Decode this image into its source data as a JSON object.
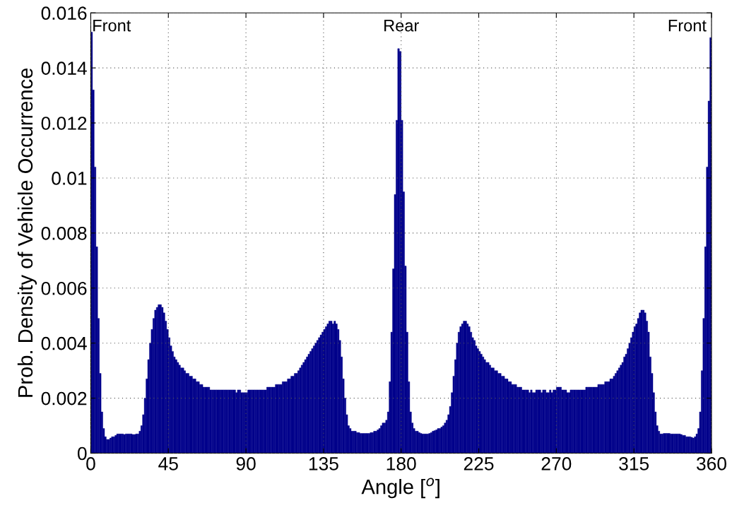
{
  "chart_data": {
    "type": "histogram",
    "xlabel": "Angle [$^{o}$]",
    "ylabel": "Prob. Density of Vehicle Occurrence",
    "bins": [
      0,
      1,
      2,
      3,
      4,
      5,
      6,
      7,
      8,
      9,
      10,
      11,
      12,
      13,
      14,
      15,
      16,
      17,
      18,
      19,
      20,
      21,
      22,
      23,
      24,
      25,
      26,
      27,
      28,
      29,
      30,
      31,
      32,
      33,
      34,
      35,
      36,
      37,
      38,
      39,
      40,
      41,
      42,
      43,
      44,
      45,
      46,
      47,
      48,
      49,
      50,
      51,
      52,
      53,
      54,
      55,
      56,
      57,
      58,
      59,
      60,
      61,
      62,
      63,
      64,
      65,
      66,
      67,
      68,
      69,
      70,
      71,
      72,
      73,
      74,
      75,
      76,
      77,
      78,
      79,
      80,
      81,
      82,
      83,
      84,
      85,
      86,
      87,
      88,
      89,
      90,
      91,
      92,
      93,
      94,
      95,
      96,
      97,
      98,
      99,
      100,
      101,
      102,
      103,
      104,
      105,
      106,
      107,
      108,
      109,
      110,
      111,
      112,
      113,
      114,
      115,
      116,
      117,
      118,
      119,
      120,
      121,
      122,
      123,
      124,
      125,
      126,
      127,
      128,
      129,
      130,
      131,
      132,
      133,
      134,
      135,
      136,
      137,
      138,
      139,
      140,
      141,
      142,
      143,
      144,
      145,
      146,
      147,
      148,
      149,
      150,
      151,
      152,
      153,
      154,
      155,
      156,
      157,
      158,
      159,
      160,
      161,
      162,
      163,
      164,
      165,
      166,
      167,
      168,
      169,
      170,
      171,
      172,
      173,
      174,
      175,
      176,
      177,
      178,
      179,
      180,
      181,
      182,
      183,
      184,
      185,
      186,
      187,
      188,
      189,
      190,
      191,
      192,
      193,
      194,
      195,
      196,
      197,
      198,
      199,
      200,
      201,
      202,
      203,
      204,
      205,
      206,
      207,
      208,
      209,
      210,
      211,
      212,
      213,
      214,
      215,
      216,
      217,
      218,
      219,
      220,
      221,
      222,
      223,
      224,
      225,
      226,
      227,
      228,
      229,
      230,
      231,
      232,
      233,
      234,
      235,
      236,
      237,
      238,
      239,
      240,
      241,
      242,
      243,
      244,
      245,
      246,
      247,
      248,
      249,
      250,
      251,
      252,
      253,
      254,
      255,
      256,
      257,
      258,
      259,
      260,
      261,
      262,
      263,
      264,
      265,
      266,
      267,
      268,
      269,
      270,
      271,
      272,
      273,
      274,
      275,
      276,
      277,
      278,
      279,
      280,
      281,
      282,
      283,
      284,
      285,
      286,
      287,
      288,
      289,
      290,
      291,
      292,
      293,
      294,
      295,
      296,
      297,
      298,
      299,
      300,
      301,
      302,
      303,
      304,
      305,
      306,
      307,
      308,
      309,
      310,
      311,
      312,
      313,
      314,
      315,
      316,
      317,
      318,
      319,
      320,
      321,
      322,
      323,
      324,
      325,
      326,
      327,
      328,
      329,
      330,
      331,
      332,
      333,
      334,
      335,
      336,
      337,
      338,
      339,
      340,
      341,
      342,
      343,
      344,
      345,
      346,
      347,
      348,
      349,
      350,
      351,
      352,
      353,
      354,
      355,
      356,
      357,
      358,
      359,
      360
    ],
    "values": [
      0.0153,
      0.0132,
      0.0104,
      0.0075,
      0.0049,
      0.0029,
      0.0015,
      0.0009,
      0.0006,
      0.0005,
      0.0005,
      0.00055,
      0.0006,
      0.0006,
      0.00065,
      0.0007,
      0.0007,
      0.0007,
      0.0007,
      0.00068,
      0.0007,
      0.0007,
      0.0007,
      0.0007,
      0.00068,
      0.00068,
      0.0007,
      0.0007,
      0.0008,
      0.001,
      0.0014,
      0.002,
      0.0027,
      0.0034,
      0.004,
      0.0045,
      0.0049,
      0.0052,
      0.0053,
      0.0054,
      0.0054,
      0.0053,
      0.0051,
      0.0048,
      0.0045,
      0.0042,
      0.0039,
      0.0037,
      0.0035,
      0.0034,
      0.0033,
      0.0032,
      0.0031,
      0.0031,
      0.003,
      0.0029,
      0.0029,
      0.0028,
      0.0028,
      0.0027,
      0.0027,
      0.0026,
      0.0026,
      0.0025,
      0.0025,
      0.0024,
      0.0024,
      0.0024,
      0.0024,
      0.0023,
      0.0023,
      0.0023,
      0.0023,
      0.0023,
      0.0023,
      0.0023,
      0.0023,
      0.0023,
      0.0023,
      0.0023,
      0.0023,
      0.0023,
      0.0023,
      0.0023,
      0.0022,
      0.0023,
      0.0023,
      0.0022,
      0.0022,
      0.0022,
      0.0022,
      0.0023,
      0.0023,
      0.0023,
      0.0023,
      0.0023,
      0.0023,
      0.0023,
      0.0023,
      0.0023,
      0.0023,
      0.0023,
      0.0024,
      0.0024,
      0.0024,
      0.0024,
      0.0024,
      0.0025,
      0.0025,
      0.0025,
      0.0025,
      0.0026,
      0.0026,
      0.0026,
      0.0027,
      0.0027,
      0.0028,
      0.0028,
      0.0029,
      0.0029,
      0.003,
      0.0031,
      0.0032,
      0.0033,
      0.0034,
      0.0035,
      0.0036,
      0.0037,
      0.0038,
      0.0039,
      0.004,
      0.0041,
      0.0042,
      0.0043,
      0.0044,
      0.0045,
      0.0046,
      0.0047,
      0.0048,
      0.0048,
      0.0047,
      0.0048,
      0.0047,
      0.0045,
      0.0041,
      0.0035,
      0.0027,
      0.002,
      0.0014,
      0.001,
      0.0009,
      0.0008,
      0.0008,
      0.0008,
      0.00075,
      0.00075,
      0.00072,
      0.00072,
      0.00072,
      0.00072,
      0.00072,
      0.00072,
      0.00075,
      0.00075,
      0.0008,
      0.0008,
      0.00085,
      0.0009,
      0.001,
      0.0011,
      0.0011,
      0.0012,
      0.0015,
      0.0026,
      0.0044,
      0.0067,
      0.0094,
      0.0121,
      0.0147,
      0.0146,
      0.0121,
      0.0095,
      0.0068,
      0.0044,
      0.0026,
      0.0015,
      0.0011,
      0.0009,
      0.0008,
      0.0008,
      0.00075,
      0.00072,
      0.0007,
      0.0007,
      0.0007,
      0.0007,
      0.00072,
      0.00075,
      0.0008,
      0.00082,
      0.00085,
      0.0009,
      0.0009,
      0.00095,
      0.001,
      0.0011,
      0.0012,
      0.0014,
      0.0017,
      0.0022,
      0.0028,
      0.0034,
      0.004,
      0.0044,
      0.0046,
      0.0047,
      0.0048,
      0.0048,
      0.0047,
      0.0046,
      0.0044,
      0.0042,
      0.0041,
      0.0039,
      0.0038,
      0.0037,
      0.0036,
      0.0035,
      0.0034,
      0.0033,
      0.0033,
      0.0032,
      0.0031,
      0.0031,
      0.003,
      0.003,
      0.0029,
      0.0029,
      0.0028,
      0.0028,
      0.0027,
      0.0027,
      0.0026,
      0.0026,
      0.0025,
      0.0025,
      0.0025,
      0.0024,
      0.0024,
      0.0024,
      0.0023,
      0.0023,
      0.0023,
      0.0023,
      0.0022,
      0.0023,
      0.0022,
      0.0022,
      0.0023,
      0.0023,
      0.0023,
      0.0022,
      0.0023,
      0.0023,
      0.0022,
      0.0022,
      0.0023,
      0.0022,
      0.0023,
      0.0023,
      0.0024,
      0.0024,
      0.0024,
      0.0023,
      0.0023,
      0.0023,
      0.0022,
      0.0022,
      0.0023,
      0.0023,
      0.0023,
      0.0023,
      0.0023,
      0.0023,
      0.0023,
      0.0023,
      0.0023,
      0.0024,
      0.0024,
      0.0024,
      0.0024,
      0.0024,
      0.0024,
      0.0024,
      0.0025,
      0.0025,
      0.0025,
      0.0025,
      0.0026,
      0.0026,
      0.0026,
      0.0027,
      0.0027,
      0.0028,
      0.0029,
      0.003,
      0.0031,
      0.0032,
      0.0033,
      0.0035,
      0.0036,
      0.0038,
      0.004,
      0.0042,
      0.0044,
      0.0046,
      0.0047,
      0.0049,
      0.0051,
      0.0052,
      0.0052,
      0.0051,
      0.0048,
      0.0044,
      0.0035,
      0.0029,
      0.0022,
      0.0015,
      0.001,
      0.0008,
      0.0007,
      0.0007,
      0.00072,
      0.00072,
      0.00072,
      0.00072,
      0.0007,
      0.0007,
      0.0007,
      0.0007,
      0.0007,
      0.0007,
      0.00068,
      0.00065,
      0.00065,
      0.0006,
      0.0006,
      0.0006,
      0.00058,
      0.00055,
      0.0006,
      0.0007,
      0.0009,
      0.0015,
      0.003,
      0.0049,
      0.0075,
      0.0104,
      0.0128,
      0.0151
    ],
    "color": "#00008b",
    "xlim": [
      0,
      360
    ],
    "xticks": [
      0,
      45,
      90,
      135,
      180,
      225,
      270,
      315,
      360
    ],
    "ylim": [
      0,
      0.016
    ],
    "yticks": [
      0,
      0.002,
      0.004,
      0.006,
      0.008,
      0.01,
      0.012,
      0.014,
      0.016
    ],
    "grid": true,
    "annotations": [
      "Front",
      "Rear",
      "Front"
    ]
  }
}
